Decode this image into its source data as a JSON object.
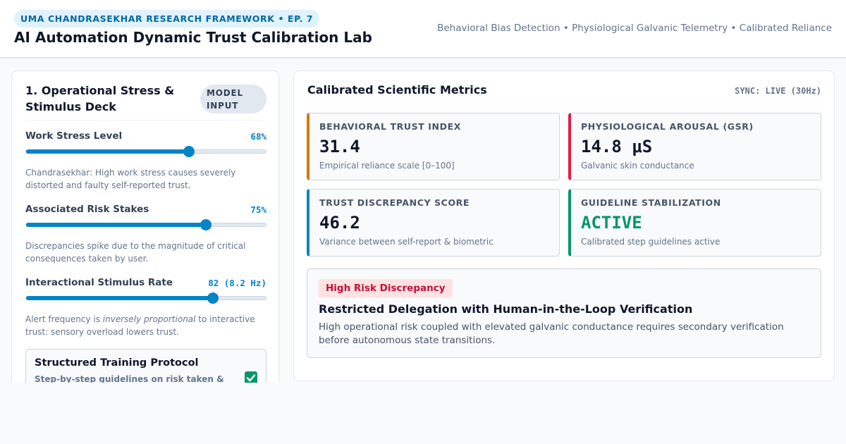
{
  "header": {
    "badge": "UMA CHANDRASEKHAR RESEARCH FRAMEWORK • EP. 7",
    "title": "AI Automation Dynamic Trust Calibration Lab",
    "tags": "Behavioral Bias Detection • Physiological Galvanic Telemetry • Calibrated Reliance"
  },
  "stimulus_deck": {
    "title": "1. Operational Stress & Stimulus Deck",
    "badge": "MODEL INPUT",
    "controls": [
      {
        "label": "Work Stress Level",
        "value": "68%",
        "level_percent": 68,
        "description": "Chandrasekhar: High work stress causes severely distorted and faulty self-reported trust."
      },
      {
        "label": "Associated Risk Stakes",
        "value": "75%",
        "level_percent": 75,
        "description": "Discrepancies spike due to the magnitude of critical consequences taken by user."
      },
      {
        "label": "Interactional Stimulus Rate",
        "value": "82 (8.2 Hz)",
        "level_percent": 78,
        "description_before": "Alert frequency is ",
        "description_emphasis": "inversely proportional",
        "description_after": " to interactive trust: sensory overload lowers trust."
      }
    ],
    "protocol": {
      "title": "Structured Training Protocol",
      "description": "Step-by-step guidelines on risk taken &",
      "checked": true
    }
  },
  "metrics_panel": {
    "title": "Calibrated Scientific Metrics",
    "sync": "SYNC: LIVE (30Hz)",
    "cards": [
      {
        "label": "BEHAVIORAL TRUST INDEX",
        "value": "31.4",
        "sub": "Empirical reliance scale [0–100]",
        "accent": "#d97706",
        "value_color": "#0f172a"
      },
      {
        "label": "PHYSIOLOGICAL AROUSAL (GSR)",
        "value": "14.8 μS",
        "sub": "Galvanic skin conductance",
        "accent": "#e11d48",
        "value_color": "#0f172a"
      },
      {
        "label": "TRUST DISCREPANCY SCORE",
        "value": "46.2",
        "sub": "Variance between self-report & biometric",
        "accent": "#0284c7",
        "value_color": "#0f172a"
      },
      {
        "label": "GUIDELINE STABILIZATION",
        "value": "ACTIVE",
        "sub": "Calibrated step guidelines active",
        "accent": "#059669",
        "value_color": "#059669"
      }
    ],
    "alert": {
      "badge": "High Risk Discrepancy",
      "title": "Restricted Delegation with Human-in-the-Loop Verification",
      "description": "High operational risk coupled with elevated galvanic conductance requires secondary verification before autonomous state transitions."
    }
  }
}
